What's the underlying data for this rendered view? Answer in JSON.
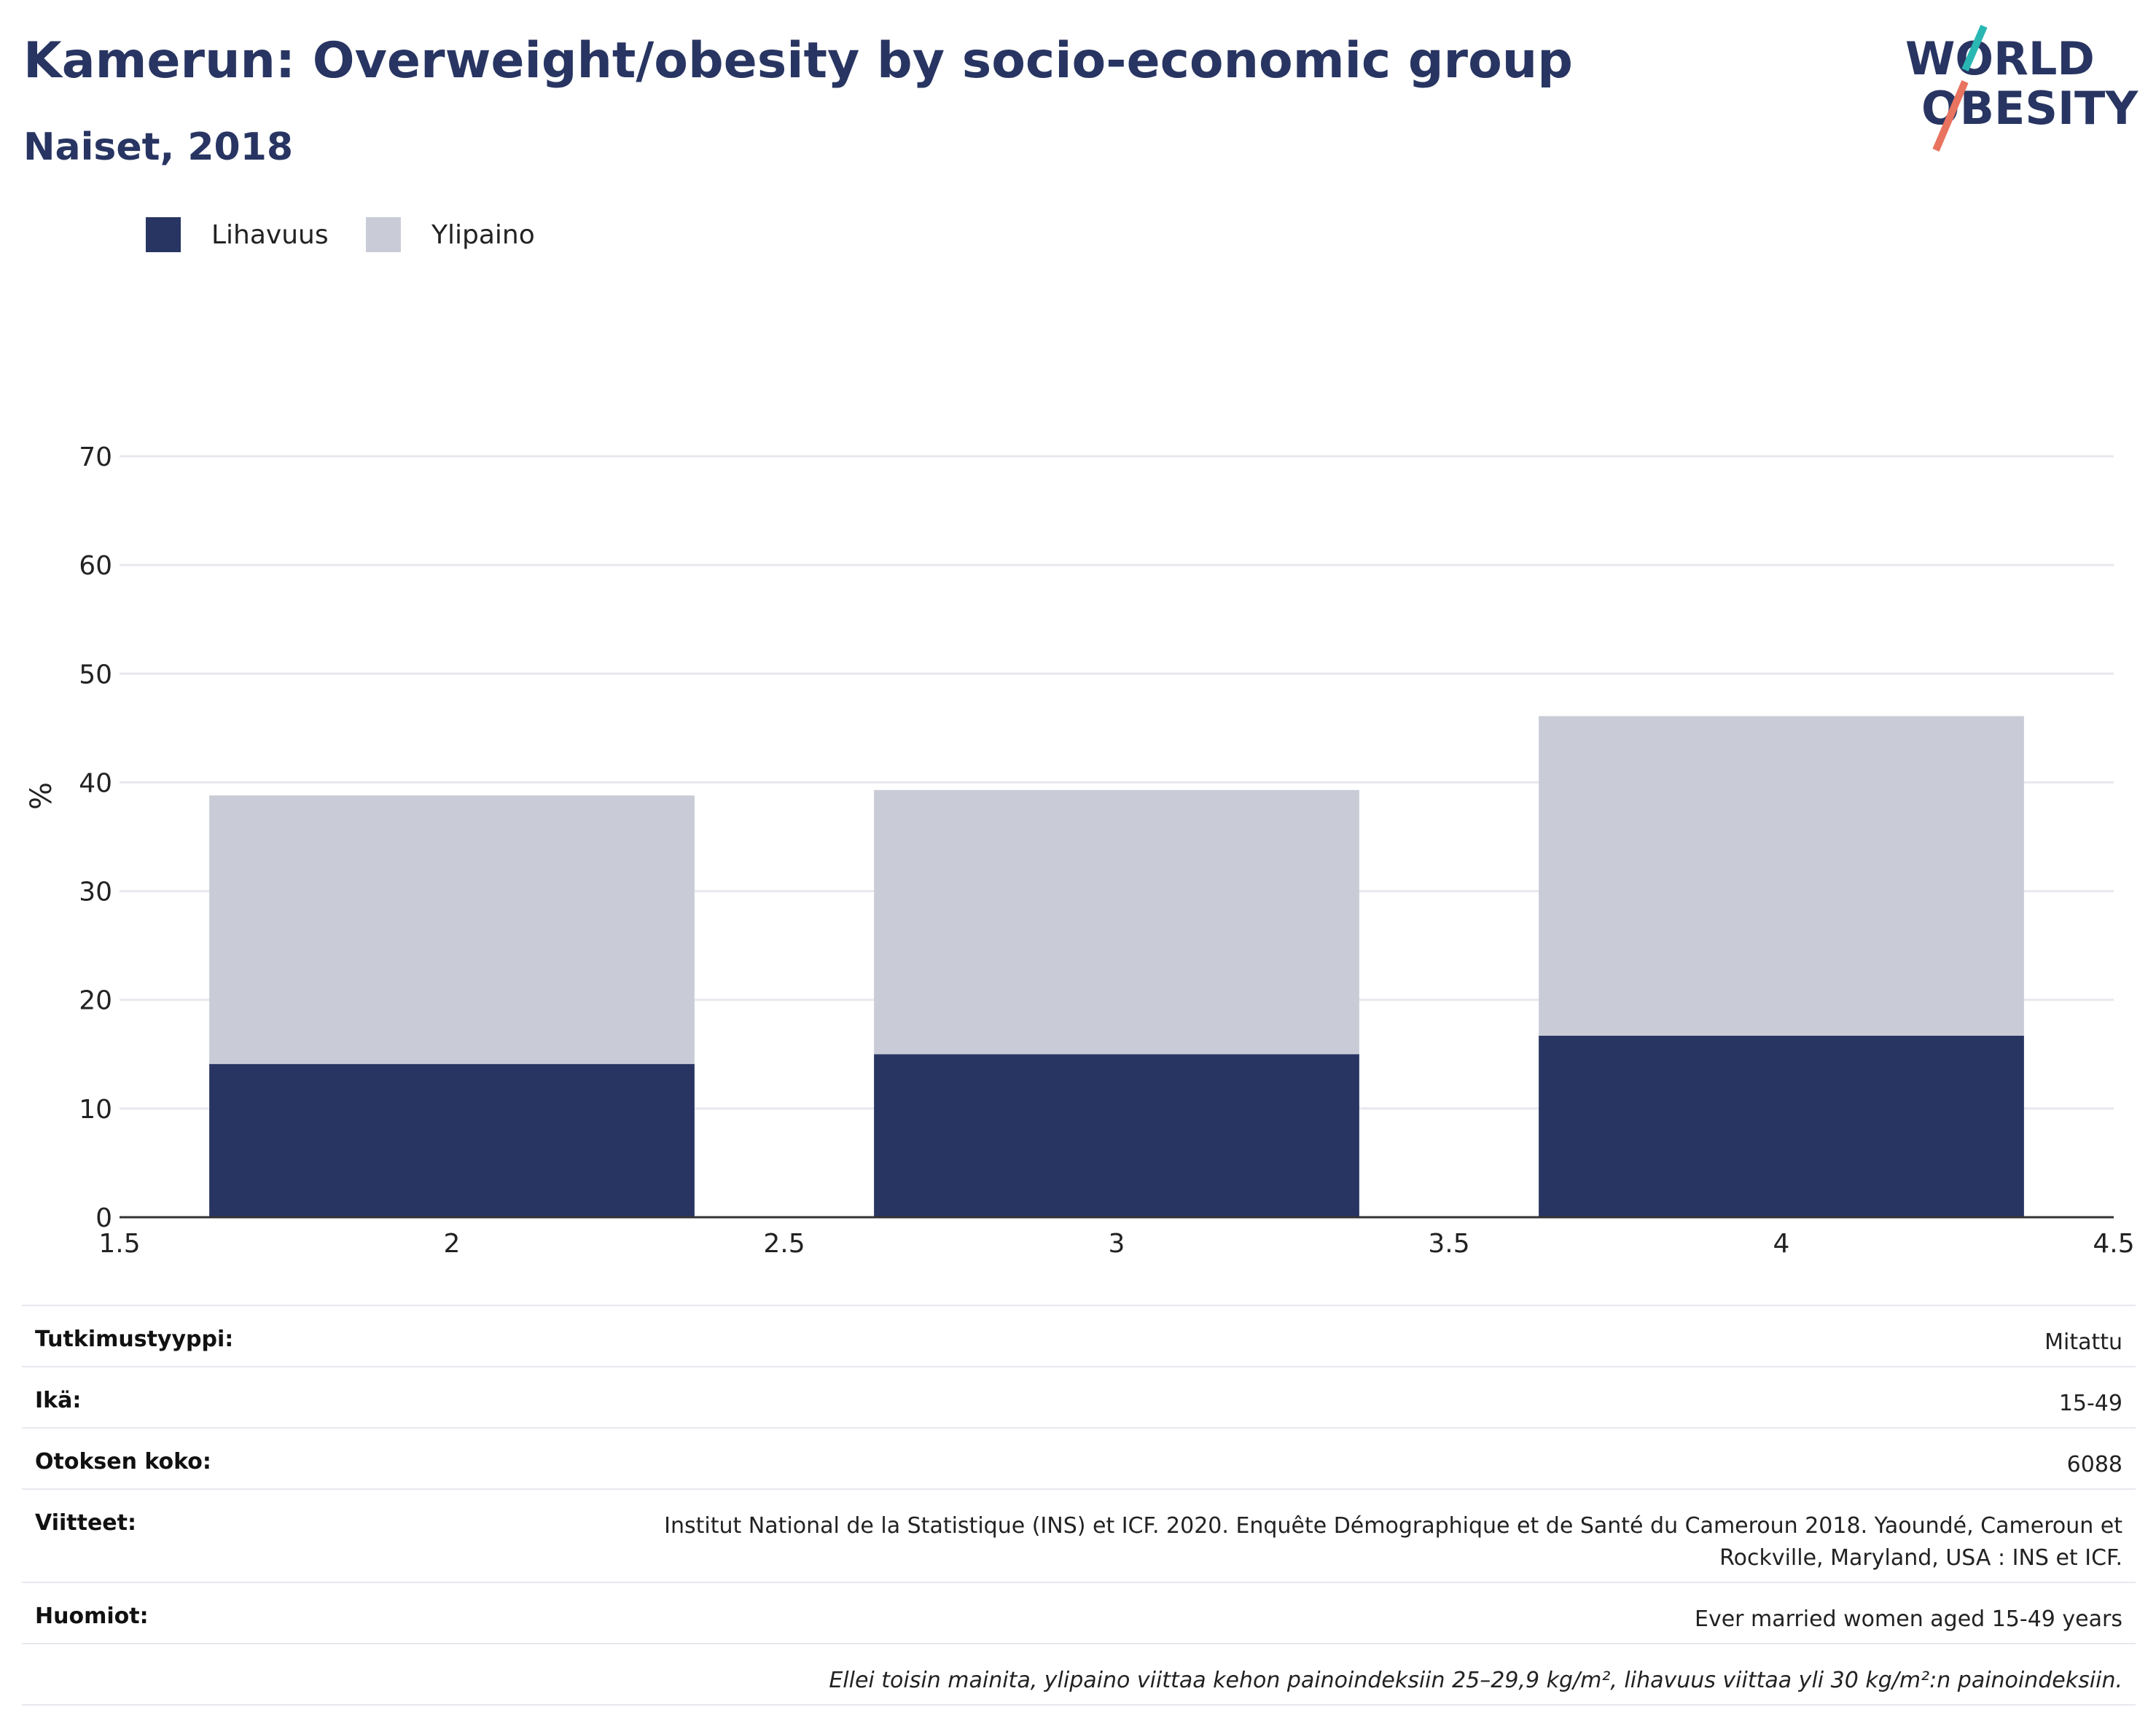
{
  "header": {
    "title": "Kamerun: Overweight/obesity by socio-economic group",
    "subtitle": "Naiset, 2018",
    "logo_line1": "WORLD",
    "logo_line2": "OBESITY"
  },
  "colors": {
    "obesity": "#283562",
    "overweight": "#c9ccd7",
    "title": "#283562",
    "logo_teal": "#2ab7b3",
    "logo_coral": "#e8735f"
  },
  "chart_data": {
    "type": "bar",
    "stacked": true,
    "x": [
      2,
      3,
      4
    ],
    "series": [
      {
        "name": "Lihavuus",
        "values": [
          14.1,
          15.0,
          16.7
        ]
      },
      {
        "name": "Ylipaino",
        "values": [
          24.7,
          24.3,
          29.4
        ]
      }
    ],
    "totals": [
      38.8,
      39.3,
      46.1
    ],
    "xlim": [
      1.5,
      4.5
    ],
    "xticks": [
      "1.5",
      "2",
      "2.5",
      "3",
      "3.5",
      "4",
      "4.5"
    ],
    "ylim": [
      0,
      70
    ],
    "yticks": [
      "0",
      "10",
      "20",
      "30",
      "40",
      "50",
      "60",
      "70"
    ],
    "ylabel": "%",
    "xlabel": "",
    "grid": true,
    "legend_position": "top-left"
  },
  "info": [
    {
      "key": "Tutkimustyyppi:",
      "value": "Mitattu"
    },
    {
      "key": "Ikä:",
      "value": "15-49"
    },
    {
      "key": "Otoksen koko:",
      "value": "6088"
    },
    {
      "key": "Viitteet:",
      "value": "Institut National de la Statistique (INS) et ICF. 2020. Enquête Démographique et de Santé du Cameroun 2018. Yaoundé, Cameroun et Rockville, Maryland, USA : INS et ICF."
    },
    {
      "key": "Huomiot:",
      "value": "Ever married women aged 15-49 years"
    }
  ],
  "footnote": "Ellei toisin mainita, ylipaino viittaa kehon painoindeksiin 25–29,9 kg/m², lihavuus viittaa yli 30 kg/m²:n painoindeksiin."
}
